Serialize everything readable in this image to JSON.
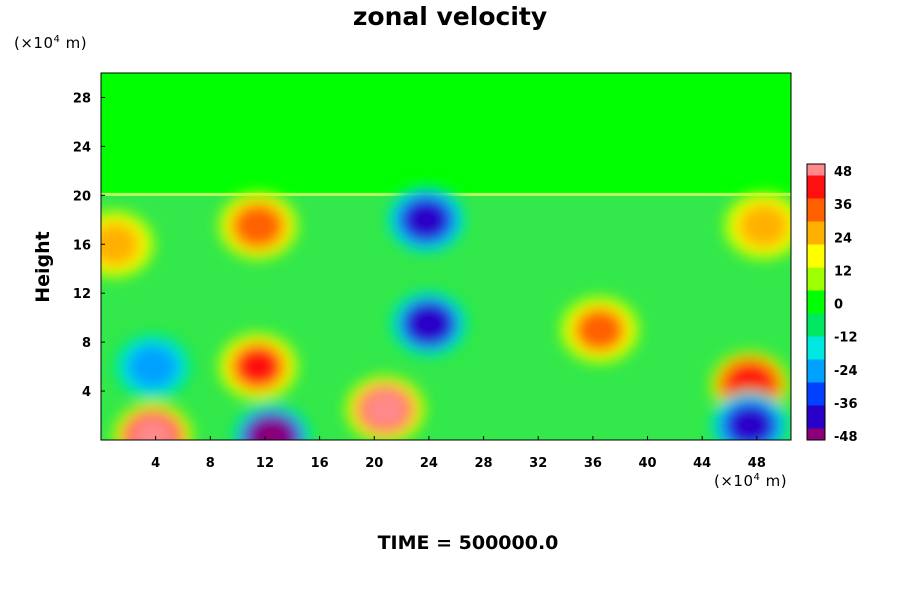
{
  "chart_data": {
    "type": "heatmap",
    "title": "zonal velocity",
    "xlabel": "",
    "ylabel": "Height",
    "x_unit_label": "(×10⁴ m)",
    "y_unit_label": "(×10⁴ m)",
    "footer": "TIME = 500000.0",
    "xlim": [
      0,
      50.5
    ],
    "ylim": [
      0,
      30
    ],
    "x_ticks": [
      "4",
      "8",
      "12",
      "16",
      "20",
      "24",
      "28",
      "32",
      "36",
      "40",
      "44",
      "48"
    ],
    "y_ticks": [
      "4",
      "8",
      "12",
      "16",
      "20",
      "24",
      "28"
    ],
    "colorbar": {
      "min": -48,
      "max": 48,
      "tick_labels": [
        "48",
        "36",
        "24",
        "12",
        "0",
        "-12",
        "-24",
        "-36",
        "-48"
      ],
      "colors": [
        "#8a007a",
        "#2a00c8",
        "#0040ff",
        "#00a0ff",
        "#00e8e0",
        "#00e860",
        "#00ff00",
        "#a0ff00",
        "#ffff00",
        "#ffb000",
        "#ff6000",
        "#ff1010",
        "#ff8a8a"
      ]
    },
    "upper_layer": {
      "y_from": 20,
      "y_to": 30,
      "value": 0
    },
    "features": [
      {
        "x": 3.8,
        "y": 0.3,
        "value": 48,
        "label": "strong positive near surface"
      },
      {
        "x": 12.5,
        "y": 0.2,
        "value": -48,
        "label": "strong negative near surface"
      },
      {
        "x": 20.8,
        "y": 2.5,
        "value": 44,
        "label": "positive core"
      },
      {
        "x": 11.5,
        "y": 6.0,
        "value": 36,
        "label": "positive column"
      },
      {
        "x": 11.5,
        "y": 17.5,
        "value": 32,
        "label": "positive upper"
      },
      {
        "x": 24.0,
        "y": 9.5,
        "value": -40,
        "label": "negative column"
      },
      {
        "x": 23.8,
        "y": 18.0,
        "value": -44,
        "label": "negative upper"
      },
      {
        "x": 47.5,
        "y": 4.5,
        "value": 40,
        "label": "positive east"
      },
      {
        "x": 47.5,
        "y": 1.2,
        "value": -44,
        "label": "negative east surface"
      },
      {
        "x": 3.8,
        "y": 6.0,
        "value": -24,
        "label": "weak negative west"
      },
      {
        "x": 48.5,
        "y": 17.5,
        "value": 24,
        "label": "positive east upper"
      },
      {
        "x": 1.0,
        "y": 16.0,
        "value": 24,
        "label": "positive west edge"
      },
      {
        "x": 36.5,
        "y": 9.0,
        "value": 28,
        "label": "positive small"
      }
    ]
  }
}
